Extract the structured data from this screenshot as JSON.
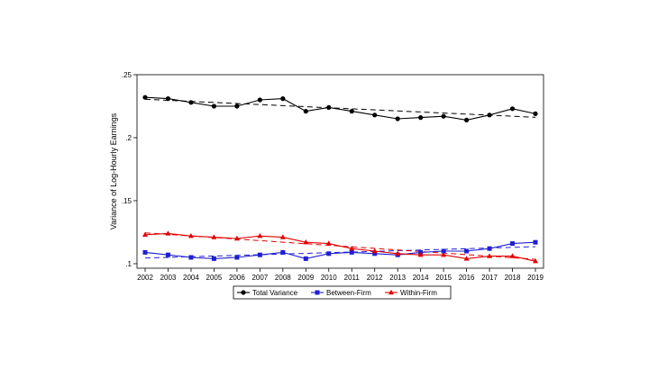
{
  "chart_data": {
    "type": "line",
    "title": "",
    "xlabel": "",
    "ylabel": "Variance of Log-Hourly Earnings",
    "x": [
      "2002",
      "2003",
      "2004",
      "2005",
      "2006",
      "2007",
      "2008",
      "2009",
      "2010",
      "2011",
      "2012",
      "2013",
      "2014",
      "2015",
      "2016",
      "2017",
      "2018",
      "2019"
    ],
    "y_ticks": [
      ".1",
      ".15",
      ".2",
      ".25"
    ],
    "ylim": [
      0.1,
      0.25
    ],
    "grid": false,
    "legend_position": "bottom",
    "series": [
      {
        "name": "Total Variance",
        "color": "#000000",
        "marker": "circle",
        "values": [
          0.232,
          0.231,
          0.228,
          0.225,
          0.225,
          0.23,
          0.231,
          0.221,
          0.224,
          0.221,
          0.218,
          0.215,
          0.216,
          0.217,
          0.214,
          0.218,
          0.223,
          0.219
        ],
        "fit": [
          0.2305,
          0.2213
        ],
        "fit_display": [
          0.2305,
          0.2162
        ]
      },
      {
        "name": "Between-Firm",
        "color": "#1f1fd0",
        "marker": "square",
        "values": [
          0.109,
          0.107,
          0.105,
          0.104,
          0.105,
          0.107,
          0.109,
          0.104,
          0.108,
          0.109,
          0.108,
          0.107,
          0.109,
          0.11,
          0.11,
          0.112,
          0.116,
          0.117
        ],
        "fit_display": [
          0.1045,
          0.1135
        ]
      },
      {
        "name": "Within-Firm",
        "color": "#e00000",
        "marker": "triangle",
        "values": [
          0.123,
          0.124,
          0.122,
          0.121,
          0.12,
          0.122,
          0.121,
          0.117,
          0.116,
          0.112,
          0.11,
          0.108,
          0.107,
          0.107,
          0.104,
          0.106,
          0.106,
          0.102
        ],
        "fit_display": [
          0.1245,
          0.1035
        ]
      }
    ]
  }
}
